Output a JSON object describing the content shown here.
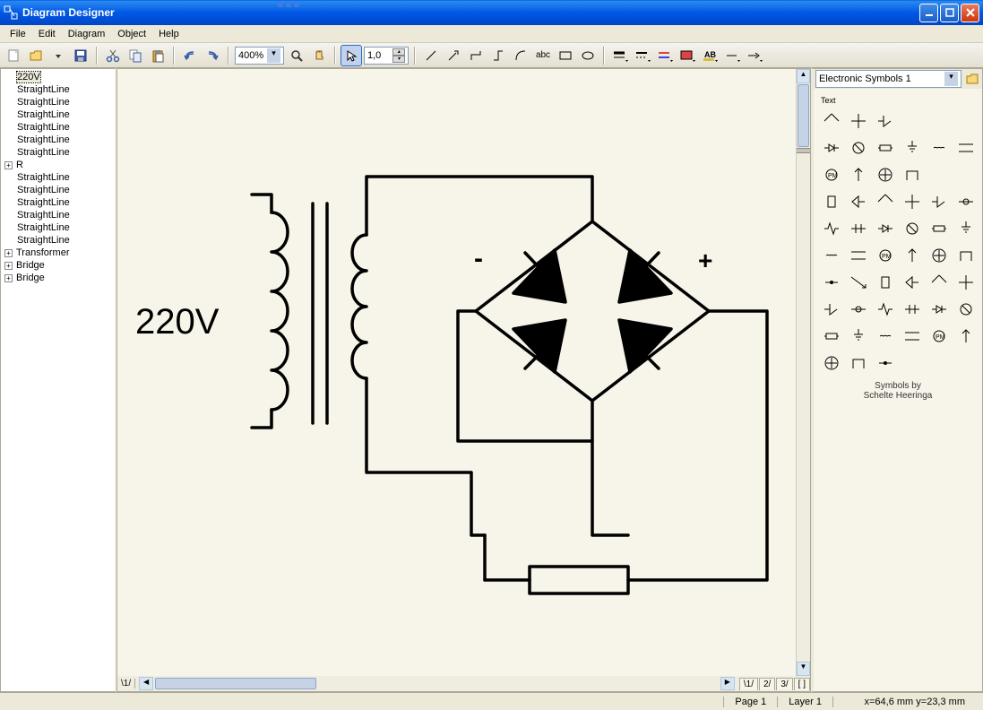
{
  "window": {
    "title": "Diagram Designer",
    "min": "_",
    "max": "□",
    "close": "X"
  },
  "menu": [
    "File",
    "Edit",
    "Diagram",
    "Object",
    "Help"
  ],
  "toolbar": {
    "zoom": "400%",
    "linewidth": "1,0"
  },
  "tree": [
    {
      "label": "220V",
      "exp": false,
      "selected": true,
      "indent": 1
    },
    {
      "label": "StraightLine",
      "exp": false,
      "indent": 1
    },
    {
      "label": "StraightLine",
      "exp": false,
      "indent": 1
    },
    {
      "label": "StraightLine",
      "exp": false,
      "indent": 1
    },
    {
      "label": "StraightLine",
      "exp": false,
      "indent": 1
    },
    {
      "label": "StraightLine",
      "exp": false,
      "indent": 1
    },
    {
      "label": "StraightLine",
      "exp": false,
      "indent": 1
    },
    {
      "label": "R",
      "exp": true,
      "indent": 0
    },
    {
      "label": "StraightLine",
      "exp": false,
      "indent": 1
    },
    {
      "label": "StraightLine",
      "exp": false,
      "indent": 1
    },
    {
      "label": "StraightLine",
      "exp": false,
      "indent": 1
    },
    {
      "label": "StraightLine",
      "exp": false,
      "indent": 1
    },
    {
      "label": "StraightLine",
      "exp": false,
      "indent": 1
    },
    {
      "label": "StraightLine",
      "exp": false,
      "indent": 1
    },
    {
      "label": "Transformer",
      "exp": true,
      "indent": 0
    },
    {
      "label": "Bridge",
      "exp": true,
      "indent": 0
    },
    {
      "label": "Bridge",
      "exp": true,
      "indent": 0
    }
  ],
  "canvas": {
    "background": "#f7f4e9",
    "stroke": "#000000",
    "stroke_width": 3.5,
    "voltage_label": "220V",
    "voltage_fontsize": 40,
    "minus": "-",
    "plus": "+",
    "sign_fontsize": 30,
    "pages": [
      "1",
      "2",
      "3",
      "[ ]"
    ],
    "bottom_tab": "1"
  },
  "palette": {
    "title": "Electronic Symbols 1",
    "text_label": "Text",
    "credit_line1": "Symbols by",
    "credit_line2": "Schelte Heeringa"
  },
  "status": {
    "page": "Page 1",
    "layer": "Layer 1",
    "coords": "x=64,6 mm   y=23,3 mm"
  },
  "colors": {
    "titlebar_grad_top": "#2a8aef",
    "titlebar_grad_bot": "#0046c8",
    "chrome": "#ece9d8",
    "border": "#aca899",
    "canvas_bg": "#f7f4e9",
    "scroll_thumb": "#c6d3e7",
    "select_border": "#7f9db9"
  }
}
